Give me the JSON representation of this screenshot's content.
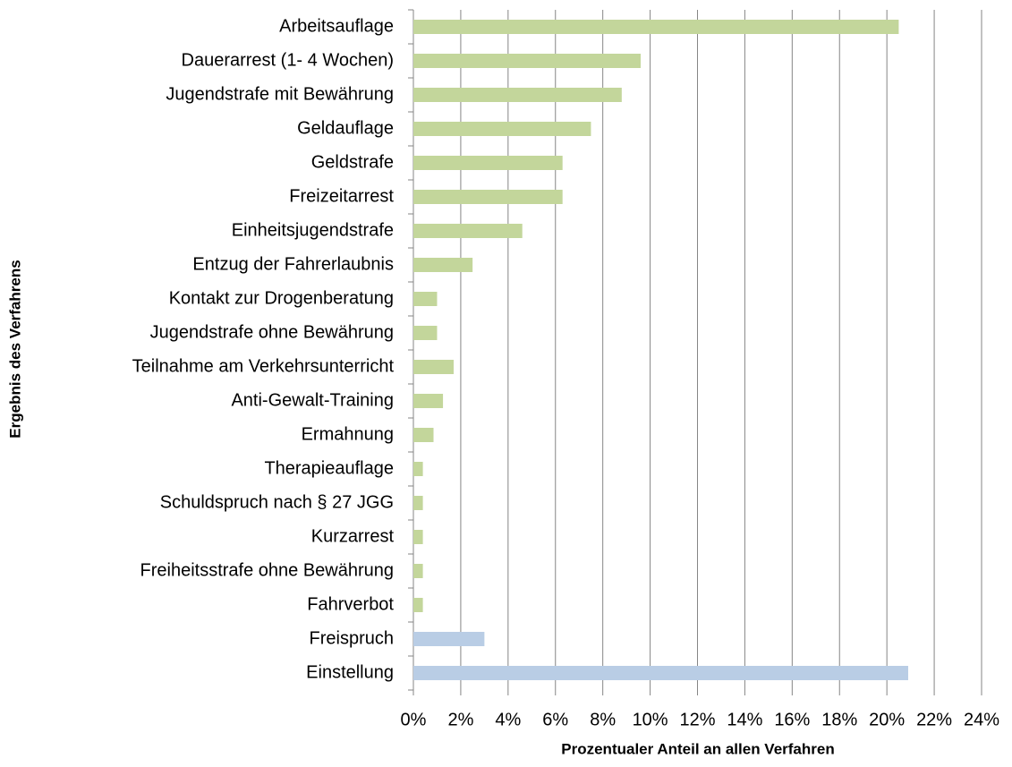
{
  "chart_data": {
    "type": "bar",
    "orientation": "horizontal",
    "xlabel": "Prozentualer Anteil an allen Verfahren",
    "ylabel": "Ergebnis des Verfahrens",
    "categories": [
      "Arbeitsauflage",
      "Dauerarrest (1- 4 Wochen)",
      "Jugendstrafe mit Bewährung",
      "Geldauflage",
      "Geldstrafe",
      "Freizeitarrest",
      "Einheitsjugendstrafe",
      "Entzug der Fahrerlaubnis",
      "Kontakt zur Drogenberatung",
      "Jugendstrafe  ohne Bewährung",
      "Teilnahme am Verkehrsunterricht",
      "Anti-Gewalt-Training",
      "Ermahnung",
      "Therapieauflage",
      "Schuldspruch nach § 27 JGG",
      "Kurzarrest",
      "Freiheitsstrafe ohne Bewährung",
      "Fahrverbot",
      "Freispruch",
      "Einstellung"
    ],
    "values": [
      20.5,
      9.6,
      8.8,
      7.5,
      6.3,
      6.3,
      4.6,
      2.5,
      1.0,
      1.0,
      1.7,
      1.25,
      0.85,
      0.4,
      0.4,
      0.4,
      0.4,
      0.4,
      3.0,
      20.9
    ],
    "colors": [
      "#c3d69b",
      "#c3d69b",
      "#c3d69b",
      "#c3d69b",
      "#c3d69b",
      "#c3d69b",
      "#c3d69b",
      "#c3d69b",
      "#c3d69b",
      "#c3d69b",
      "#c3d69b",
      "#c3d69b",
      "#c3d69b",
      "#c3d69b",
      "#c3d69b",
      "#c3d69b",
      "#c3d69b",
      "#c3d69b",
      "#b9cde5",
      "#b9cde5"
    ],
    "xlim": [
      0,
      24
    ],
    "xticks": [
      {
        "value": 0,
        "label": "0%"
      },
      {
        "value": 2,
        "label": "2%"
      },
      {
        "value": 4,
        "label": "4%"
      },
      {
        "value": 6,
        "label": "6%"
      },
      {
        "value": 8,
        "label": "8%"
      },
      {
        "value": 10,
        "label": "10%"
      },
      {
        "value": 12,
        "label": "12%"
      },
      {
        "value": 14,
        "label": "14%"
      },
      {
        "value": 16,
        "label": "16%"
      },
      {
        "value": 18,
        "label": "18%"
      },
      {
        "value": 20,
        "label": "20%"
      },
      {
        "value": 22,
        "label": "22%"
      },
      {
        "value": 24,
        "label": "24%"
      }
    ],
    "grid": true
  }
}
